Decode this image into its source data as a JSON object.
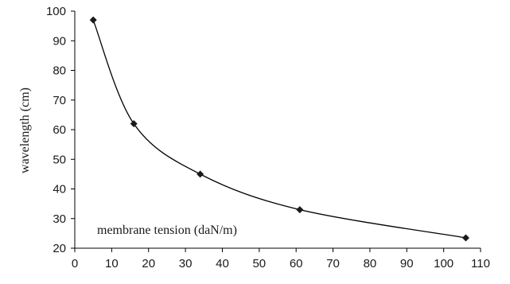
{
  "chart_data": {
    "type": "line",
    "title": "",
    "xlabel": "membrane tension (daN/m)",
    "ylabel": "wavelength (cm)",
    "xlim": [
      0,
      110
    ],
    "ylim": [
      20,
      100
    ],
    "x_ticks": [
      0,
      10,
      20,
      30,
      40,
      50,
      60,
      70,
      80,
      90,
      100,
      110
    ],
    "y_ticks": [
      20,
      30,
      40,
      50,
      60,
      70,
      80,
      90,
      100
    ],
    "grid": false,
    "legend": "none",
    "series": [
      {
        "x": [
          5,
          16,
          34,
          61,
          106
        ],
        "y": [
          97,
          62,
          45,
          33,
          23.5
        ],
        "marker": "diamond",
        "smooth": true
      }
    ],
    "colors": {
      "line": "#000000",
      "marker": "#1a1a1a",
      "axis": "#000000",
      "text": "#1a1a1a"
    }
  }
}
